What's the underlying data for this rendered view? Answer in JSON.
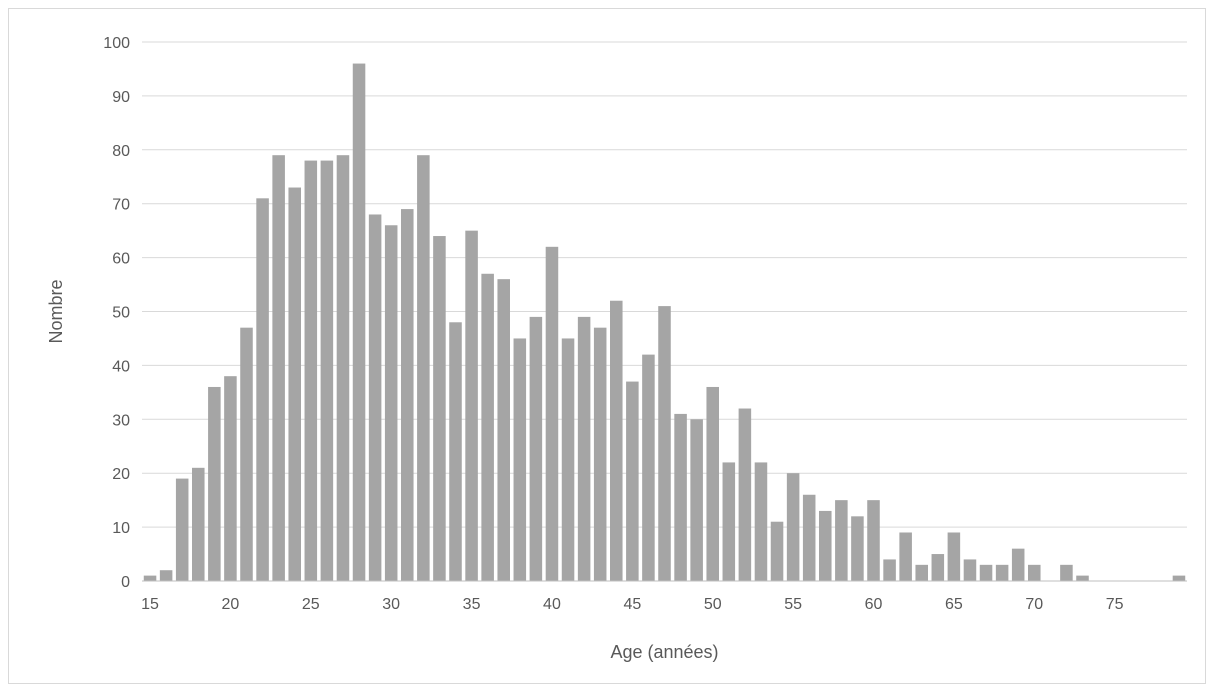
{
  "chart_data": {
    "type": "bar",
    "title": "",
    "xlabel": "Age (années)",
    "ylabel": "Nombre",
    "ylim": [
      0,
      100
    ],
    "yticks": [
      0,
      10,
      20,
      30,
      40,
      50,
      60,
      70,
      80,
      90,
      100
    ],
    "xtick_labels": [
      15,
      20,
      25,
      30,
      35,
      40,
      45,
      50,
      55,
      60,
      65,
      70,
      75
    ],
    "grid": "horizontal",
    "legend": "none",
    "bar_color": "#a5a5a5",
    "categories": [
      15,
      16,
      17,
      18,
      19,
      20,
      21,
      22,
      23,
      24,
      25,
      26,
      27,
      28,
      29,
      30,
      31,
      32,
      33,
      34,
      35,
      36,
      37,
      38,
      39,
      40,
      41,
      42,
      43,
      44,
      45,
      46,
      47,
      48,
      49,
      50,
      51,
      52,
      53,
      54,
      55,
      56,
      57,
      58,
      59,
      60,
      61,
      62,
      63,
      64,
      65,
      66,
      67,
      68,
      69,
      70,
      71,
      72,
      73,
      74,
      75,
      76,
      77,
      78,
      79
    ],
    "values": [
      1,
      2,
      19,
      21,
      36,
      38,
      47,
      71,
      79,
      73,
      78,
      78,
      79,
      96,
      68,
      66,
      69,
      79,
      64,
      48,
      65,
      57,
      56,
      45,
      49,
      62,
      45,
      49,
      47,
      52,
      37,
      42,
      51,
      31,
      30,
      36,
      22,
      32,
      22,
      11,
      20,
      16,
      13,
      15,
      12,
      15,
      4,
      9,
      3,
      5,
      9,
      4,
      3,
      3,
      6,
      3,
      0,
      3,
      1,
      0,
      0,
      0,
      0,
      0,
      1
    ]
  }
}
